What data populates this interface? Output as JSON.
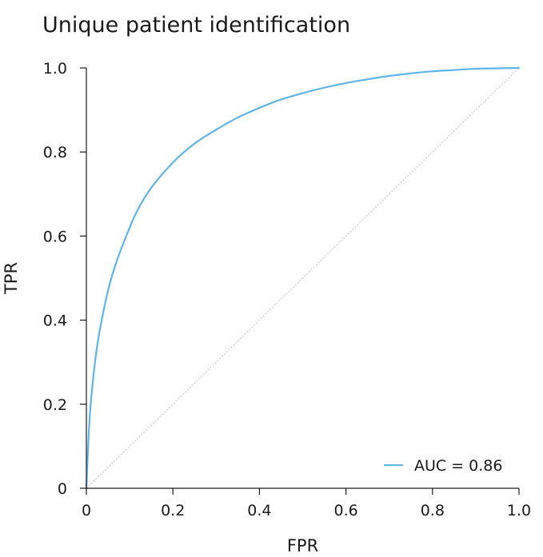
{
  "chart_data": {
    "type": "line",
    "title": "Unique patient identification",
    "xlabel": "FPR",
    "ylabel": "TPR",
    "xlim": [
      0,
      1
    ],
    "ylim": [
      0,
      1
    ],
    "xticks": [
      "0",
      "0.2",
      "0.4",
      "0.6",
      "0.8",
      "1.0"
    ],
    "yticks": [
      "0",
      "0.2",
      "0.4",
      "0.6",
      "0.8",
      "1.0"
    ],
    "grid": false,
    "legend_position": "bottom-right",
    "series": [
      {
        "name": "AUC = 0.86",
        "color": "#5fb4e8",
        "x": [
          0,
          0.005,
          0.01,
          0.02,
          0.03,
          0.05,
          0.07,
          0.1,
          0.12,
          0.15,
          0.2,
          0.25,
          0.3,
          0.35,
          0.4,
          0.45,
          0.5,
          0.55,
          0.6,
          0.65,
          0.7,
          0.75,
          0.8,
          0.85,
          0.9,
          0.95,
          1.0
        ],
        "y": [
          0,
          0.12,
          0.2,
          0.3,
          0.37,
          0.47,
          0.54,
          0.62,
          0.665,
          0.715,
          0.775,
          0.82,
          0.853,
          0.882,
          0.905,
          0.925,
          0.94,
          0.953,
          0.964,
          0.973,
          0.981,
          0.987,
          0.992,
          0.995,
          0.998,
          0.999,
          1.0
        ]
      }
    ],
    "reference_line": {
      "x": [
        0,
        1
      ],
      "y": [
        0,
        1
      ],
      "color": "#c8c8c8"
    }
  }
}
